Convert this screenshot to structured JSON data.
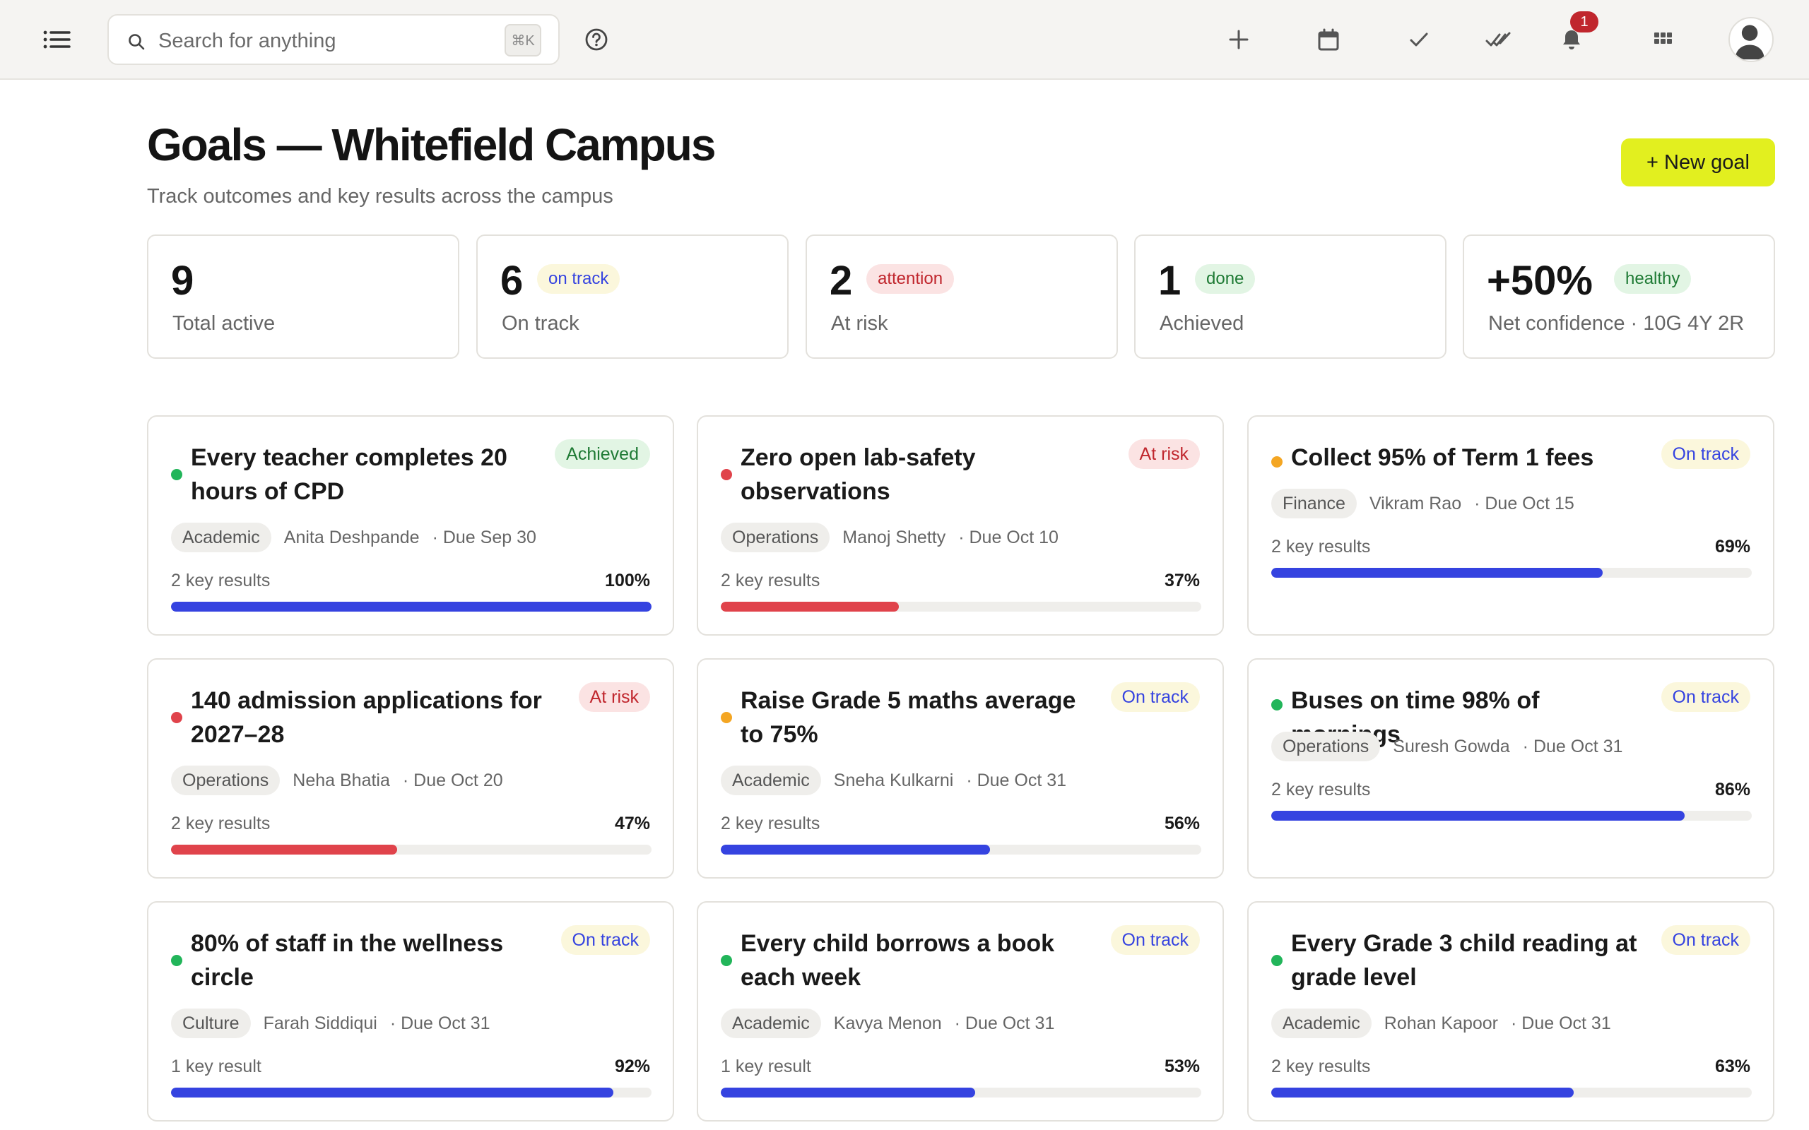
{
  "topbar": {
    "search_placeholder": "Search for anything",
    "search_shortcut": "⌘K",
    "notification_count": "1",
    "icons": [
      "menu-icon",
      "search-icon",
      "help-icon",
      "plus-icon",
      "calendar-icon",
      "check-icon",
      "double-check-icon",
      "bell-icon",
      "apps-grid-icon",
      "user-avatar"
    ]
  },
  "header": {
    "title": "Goals — Whitefield Campus",
    "subtitle": "Track outcomes and key results across the campus",
    "new_goal_label": "+ New goal"
  },
  "stats": [
    {
      "value": "9",
      "label": "Total active",
      "pill": ""
    },
    {
      "value": "6",
      "label": "On track",
      "pill": "on track",
      "pill_style": "blue"
    },
    {
      "value": "2",
      "label": "At risk",
      "pill": "attention",
      "pill_style": "red"
    },
    {
      "value": "1",
      "label": "Achieved",
      "pill": "done",
      "pill_style": "green"
    },
    {
      "value": "+50%",
      "label": "Net confidence · 10G 4Y 2R",
      "pill": "healthy",
      "pill_style": "green"
    }
  ],
  "colors": {
    "accent_button": "#e2ef1f",
    "progress_blue": "#3543e0",
    "progress_red": "#e0434b",
    "dot_green": "#22b55a",
    "dot_red": "#e0434b",
    "dot_amber": "#f4a623"
  },
  "goals": [
    {
      "title": "Every teacher completes 20 hours of CPD",
      "status": "Achieved",
      "status_style": "green",
      "dot": "green",
      "category": "Academic",
      "owner": "Anita Deshpande",
      "due": "· Due Sep 30",
      "key_results": "2 key results",
      "progress_label": "100%",
      "progress": 1.0,
      "bar": "blue"
    },
    {
      "title": "Zero open lab-safety observations",
      "status": "At risk",
      "status_style": "red",
      "dot": "red",
      "category": "Operations",
      "owner": "Manoj Shetty",
      "due": "· Due Oct 10",
      "key_results": "2 key results",
      "progress_label": "37%",
      "progress": 0.37,
      "bar": "red"
    },
    {
      "title": "Collect 95% of Term 1 fees",
      "status": "On track",
      "status_style": "blue",
      "dot": "amber",
      "category": "Finance",
      "owner": "Vikram Rao",
      "due": "· Due Oct 15",
      "key_results": "2 key results",
      "progress_label": "69%",
      "progress": 0.69,
      "bar": "blue"
    },
    {
      "title": "140 admission applications for 2027–28",
      "status": "At risk",
      "status_style": "red",
      "dot": "red",
      "category": "Operations",
      "owner": "Neha Bhatia",
      "due": "· Due Oct 20",
      "key_results": "2 key results",
      "progress_label": "47%",
      "progress": 0.47,
      "bar": "red"
    },
    {
      "title": "Raise Grade 5 maths average to 75%",
      "status": "On track",
      "status_style": "blue",
      "dot": "amber",
      "category": "Academic",
      "owner": "Sneha Kulkarni",
      "due": "· Due Oct 31",
      "key_results": "2 key results",
      "progress_label": "56%",
      "progress": 0.56,
      "bar": "blue"
    },
    {
      "title": "Buses on time 98% of mornings",
      "status": "On track",
      "status_style": "blue",
      "dot": "green",
      "category": "Operations",
      "owner": "Suresh Gowda",
      "due": "· Due Oct 31",
      "key_results": "2 key results",
      "progress_label": "86%",
      "progress": 0.86,
      "bar": "blue"
    },
    {
      "title": "80% of staff in the wellness circle",
      "status": "On track",
      "status_style": "blue",
      "dot": "green",
      "category": "Culture",
      "owner": "Farah Siddiqui",
      "due": "· Due Oct 31",
      "key_results": "1 key result",
      "progress_label": "92%",
      "progress": 0.92,
      "bar": "blue"
    },
    {
      "title": "Every child borrows a book each week",
      "status": "On track",
      "status_style": "blue",
      "dot": "green",
      "category": "Academic",
      "owner": "Kavya Menon",
      "due": "· Due Oct 31",
      "key_results": "1 key result",
      "progress_label": "53%",
      "progress": 0.53,
      "bar": "blue"
    },
    {
      "title": "Every Grade 3 child reading at grade level",
      "status": "On track",
      "status_style": "blue",
      "dot": "green",
      "category": "Academic",
      "owner": "Rohan Kapoor",
      "due": "· Due Oct 31",
      "key_results": "2 key results",
      "progress_label": "63%",
      "progress": 0.63,
      "bar": "blue"
    }
  ]
}
